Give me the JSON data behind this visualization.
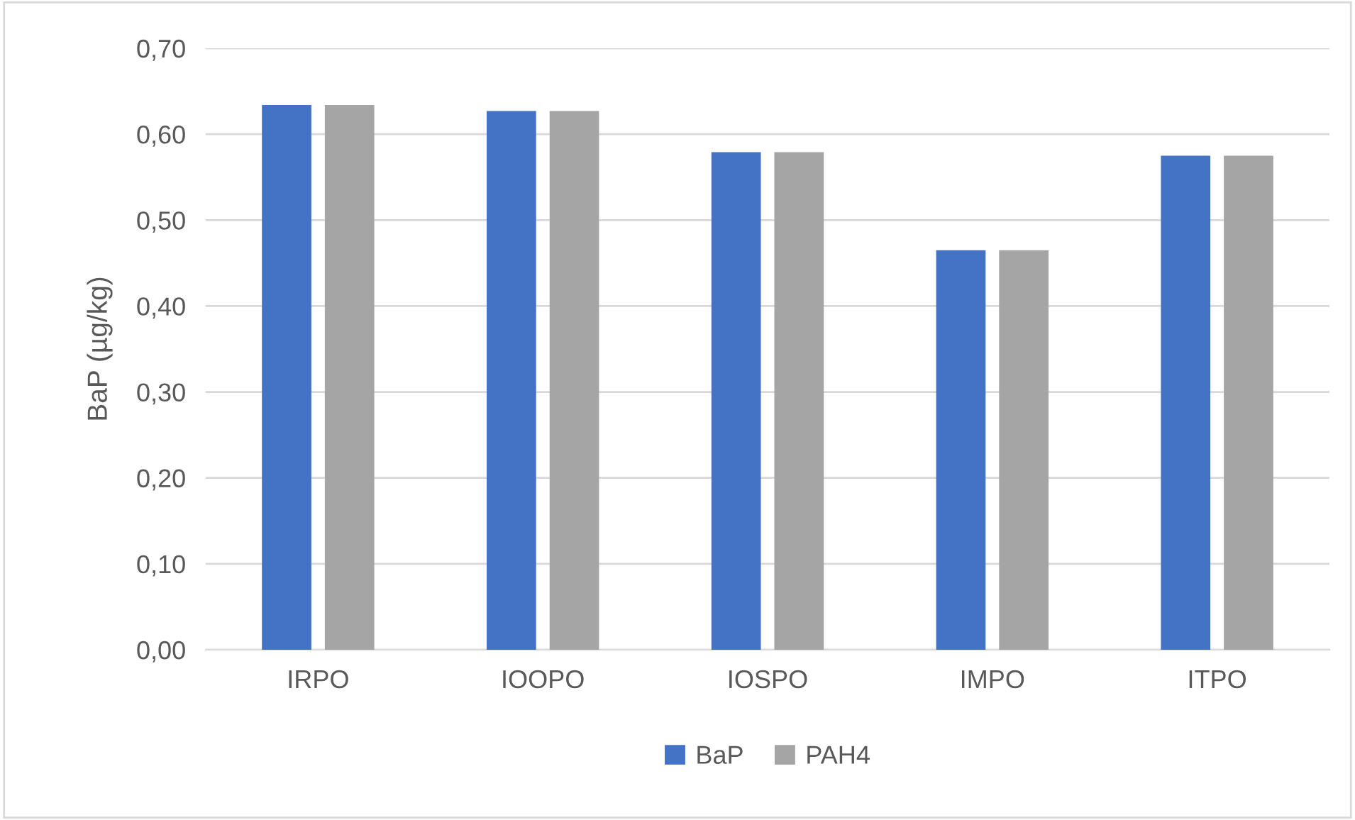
{
  "chart_data": {
    "type": "bar",
    "ylabel": "BaP (µg/kg)",
    "categories": [
      "IRPO",
      "IOOPO",
      "IOSPO",
      "IMPO",
      "ITPO"
    ],
    "series": [
      {
        "name": "BaP",
        "color": "#4472c4",
        "values": [
          0.634,
          0.627,
          0.579,
          0.465,
          0.575
        ]
      },
      {
        "name": "PAH4",
        "color": "#a5a5a5",
        "values": [
          0.634,
          0.627,
          0.579,
          0.465,
          0.575
        ]
      }
    ],
    "ylim": [
      0,
      0.7
    ],
    "yticks": [
      {
        "value": 0,
        "label": "0,00"
      },
      {
        "value": 0.1,
        "label": "0,10"
      },
      {
        "value": 0.2,
        "label": "0,20"
      },
      {
        "value": 0.3,
        "label": "0,30"
      },
      {
        "value": 0.4,
        "label": "0,40"
      },
      {
        "value": 0.5,
        "label": "0,50"
      },
      {
        "value": 0.6,
        "label": "0,60"
      },
      {
        "value": 0.7,
        "label": "0,70"
      }
    ],
    "grid": "y",
    "legend": "bottom"
  }
}
